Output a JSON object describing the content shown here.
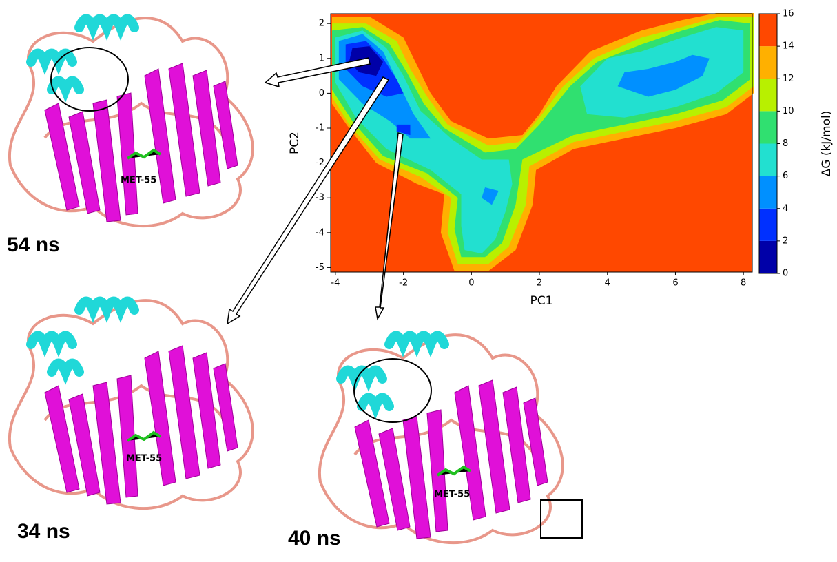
{
  "chart_data": {
    "type": "contourf",
    "xlabel": "PC1",
    "ylabel": "PC2",
    "xlim": [
      -4.14,
      8.26
    ],
    "ylim": [
      -5.13,
      2.28
    ],
    "xticks": [
      -4,
      -2,
      0,
      2,
      4,
      6,
      8
    ],
    "yticks": [
      -5,
      -4,
      -3,
      -2,
      -1,
      0,
      1,
      2
    ],
    "colorbar": {
      "label": "ΔG (kJ/mol)",
      "levels": [
        0,
        2,
        4,
        6,
        8,
        10,
        12,
        14,
        16
      ],
      "colors": [
        "#0000a8",
        "#0030ff",
        "#0090ff",
        "#22e0d0",
        "#30e070",
        "#b8f000",
        "#ffb000",
        "#ff4800"
      ]
    },
    "regions": [
      {
        "level": 14,
        "polygons": [
          [
            [
              -4.1,
              2.2
            ],
            [
              -3.0,
              2.2
            ],
            [
              -2.0,
              1.6
            ],
            [
              -1.6,
              0.8
            ],
            [
              -1.2,
              0.0
            ],
            [
              -0.6,
              -0.8
            ],
            [
              0.5,
              -1.3
            ],
            [
              1.5,
              -1.2
            ],
            [
              2.0,
              -0.6
            ],
            [
              2.5,
              0.2
            ],
            [
              3.5,
              1.2
            ],
            [
              5.0,
              1.8
            ],
            [
              6.2,
              2.1
            ],
            [
              7.2,
              2.3
            ],
            [
              8.3,
              2.3
            ],
            [
              8.3,
              0.0
            ],
            [
              7.5,
              -0.6
            ],
            [
              6.0,
              -1.0
            ],
            [
              4.5,
              -1.3
            ],
            [
              3.0,
              -1.6
            ],
            [
              1.9,
              -2.2
            ],
            [
              1.8,
              -3.2
            ],
            [
              1.3,
              -4.5
            ],
            [
              0.5,
              -5.1
            ],
            [
              -0.5,
              -5.1
            ],
            [
              -0.9,
              -4.0
            ],
            [
              -0.8,
              -2.9
            ],
            [
              -1.6,
              -2.6
            ],
            [
              -2.8,
              -2.0
            ],
            [
              -3.6,
              -1.0
            ],
            [
              -4.1,
              -0.3
            ]
          ]
        ]
      },
      {
        "level": 12,
        "polygons": [
          [
            [
              -4.1,
              2.0
            ],
            [
              -3.1,
              2.0
            ],
            [
              -2.2,
              1.5
            ],
            [
              -1.8,
              0.7
            ],
            [
              -1.3,
              -0.1
            ],
            [
              -0.7,
              -0.9
            ],
            [
              0.5,
              -1.5
            ],
            [
              1.4,
              -1.4
            ],
            [
              2.0,
              -0.7
            ],
            [
              2.7,
              0.2
            ],
            [
              3.6,
              1.0
            ],
            [
              5.0,
              1.6
            ],
            [
              6.2,
              1.9
            ],
            [
              7.3,
              2.2
            ],
            [
              8.3,
              2.2
            ],
            [
              8.3,
              0.2
            ],
            [
              7.5,
              -0.4
            ],
            [
              6.0,
              -0.8
            ],
            [
              4.5,
              -1.1
            ],
            [
              3.0,
              -1.4
            ],
            [
              1.7,
              -2.1
            ],
            [
              1.6,
              -3.2
            ],
            [
              1.1,
              -4.4
            ],
            [
              0.5,
              -4.9
            ],
            [
              -0.4,
              -4.9
            ],
            [
              -0.7,
              -4.0
            ],
            [
              -0.6,
              -3.0
            ],
            [
              -1.5,
              -2.4
            ],
            [
              -2.7,
              -1.9
            ],
            [
              -3.6,
              -0.9
            ],
            [
              -4.1,
              -0.1
            ]
          ]
        ]
      },
      {
        "level": 10,
        "polygons": [
          [
            [
              -4.1,
              1.8
            ],
            [
              -3.2,
              1.9
            ],
            [
              -2.4,
              1.4
            ],
            [
              -1.9,
              0.6
            ],
            [
              -1.4,
              -0.3
            ],
            [
              -0.8,
              -1.0
            ],
            [
              0.4,
              -1.7
            ],
            [
              1.3,
              -1.6
            ],
            [
              2.0,
              -0.9
            ],
            [
              2.9,
              0.2
            ],
            [
              3.7,
              0.9
            ],
            [
              5.0,
              1.4
            ],
            [
              6.2,
              1.8
            ],
            [
              7.3,
              2.1
            ],
            [
              8.2,
              2.0
            ],
            [
              8.2,
              0.4
            ],
            [
              7.4,
              -0.2
            ],
            [
              6.0,
              -0.6
            ],
            [
              4.5,
              -0.9
            ],
            [
              3.0,
              -1.2
            ],
            [
              1.5,
              -1.9
            ],
            [
              1.3,
              -3.2
            ],
            [
              0.9,
              -4.3
            ],
            [
              0.4,
              -4.7
            ],
            [
              -0.3,
              -4.7
            ],
            [
              -0.5,
              -3.9
            ],
            [
              -0.4,
              -3.0
            ],
            [
              -1.3,
              -2.3
            ],
            [
              -2.6,
              -1.8
            ],
            [
              -3.5,
              -0.8
            ],
            [
              -4.1,
              0.1
            ]
          ]
        ]
      },
      {
        "level": 8,
        "polygons": [
          [
            [
              -4.0,
              1.6
            ],
            [
              -3.2,
              1.8
            ],
            [
              -2.5,
              1.3
            ],
            [
              -2.0,
              0.5
            ],
            [
              -1.5,
              -0.5
            ],
            [
              -0.6,
              -1.3
            ],
            [
              0.3,
              -1.9
            ],
            [
              1.1,
              -1.9
            ],
            [
              1.2,
              -2.6
            ],
            [
              1.0,
              -3.4
            ],
            [
              0.7,
              -4.2
            ],
            [
              0.3,
              -4.6
            ],
            [
              -0.2,
              -4.5
            ],
            [
              -0.3,
              -3.8
            ],
            [
              -0.3,
              -2.9
            ],
            [
              -1.2,
              -2.2
            ],
            [
              -2.5,
              -1.6
            ],
            [
              -3.4,
              -0.7
            ],
            [
              -4.0,
              0.3
            ]
          ],
          [
            [
              3.2,
              0.2
            ],
            [
              4.0,
              1.0
            ],
            [
              5.0,
              1.2
            ],
            [
              6.2,
              1.6
            ],
            [
              7.2,
              1.9
            ],
            [
              8.0,
              1.8
            ],
            [
              8.0,
              0.6
            ],
            [
              7.2,
              0.0
            ],
            [
              6.0,
              -0.4
            ],
            [
              4.5,
              -0.7
            ],
            [
              3.4,
              -0.6
            ]
          ]
        ]
      },
      {
        "level": 6,
        "polygons": [
          [
            [
              -3.9,
              1.5
            ],
            [
              -3.2,
              1.7
            ],
            [
              -2.6,
              1.2
            ],
            [
              -2.2,
              0.4
            ],
            [
              -1.7,
              -0.6
            ],
            [
              -1.2,
              -1.3
            ],
            [
              -1.8,
              -1.3
            ],
            [
              -2.4,
              -0.8
            ],
            [
              -3.2,
              -0.3
            ],
            [
              -3.9,
              0.4
            ]
          ],
          [
            [
              0.4,
              -2.7
            ],
            [
              0.8,
              -2.8
            ],
            [
              0.6,
              -3.2
            ],
            [
              0.3,
              -3.0
            ]
          ],
          [
            [
              4.3,
              0.2
            ],
            [
              4.5,
              0.6
            ],
            [
              5.2,
              0.7
            ],
            [
              6.0,
              0.9
            ],
            [
              6.5,
              1.1
            ],
            [
              7.0,
              1.0
            ],
            [
              6.8,
              0.5
            ],
            [
              6.0,
              0.1
            ],
            [
              5.2,
              -0.1
            ]
          ]
        ]
      },
      {
        "level": 4,
        "polygons": [
          [
            [
              -3.7,
              1.4
            ],
            [
              -3.1,
              1.5
            ],
            [
              -2.6,
              1.0
            ],
            [
              -2.2,
              0.4
            ],
            [
              -2.0,
              0.0
            ],
            [
              -2.5,
              -0.1
            ],
            [
              -3.2,
              0.2
            ],
            [
              -3.7,
              0.7
            ]
          ],
          [
            [
              -2.2,
              -0.9
            ],
            [
              -1.8,
              -0.9
            ],
            [
              -1.8,
              -1.2
            ],
            [
              -2.2,
              -1.1
            ]
          ]
        ]
      },
      {
        "level": 2,
        "polygons": [
          [
            [
              -3.5,
              1.3
            ],
            [
              -3.0,
              1.35
            ],
            [
              -2.6,
              0.9
            ],
            [
              -2.8,
              0.5
            ],
            [
              -3.3,
              0.6
            ],
            [
              -3.6,
              0.9
            ]
          ]
        ]
      }
    ]
  },
  "annotations": {
    "frames": [
      "54 ns",
      "34 ns",
      "40 ns"
    ],
    "residue": "MET-55"
  }
}
